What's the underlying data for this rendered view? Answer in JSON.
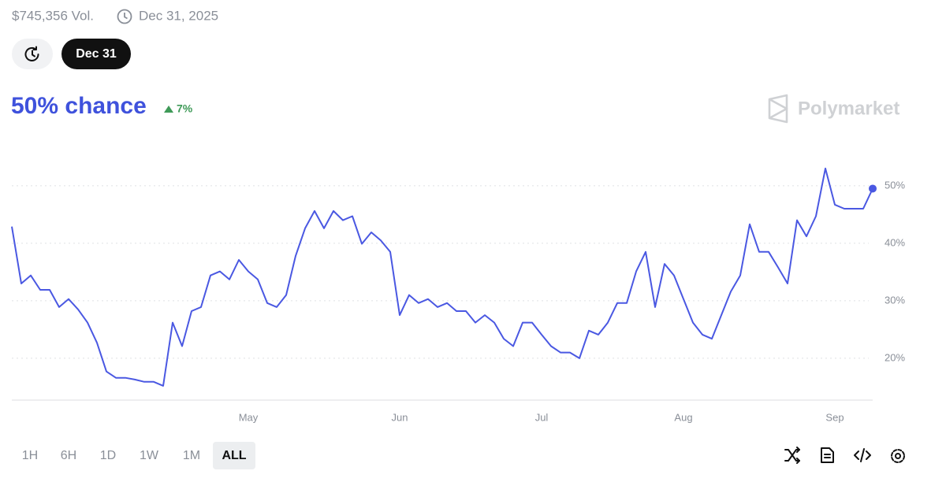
{
  "header": {
    "volume": "$745,356 Vol.",
    "end_date": "Dec 31, 2025",
    "date_button": "Dec 31"
  },
  "probability": {
    "chance": "50% chance",
    "change": "7%"
  },
  "brand": "Polymarket",
  "time_ranges": [
    "1H",
    "6H",
    "1D",
    "1W",
    "1M",
    "ALL"
  ],
  "chart_data": {
    "type": "line",
    "color": "#4a58e2",
    "categories": [
      null,
      null,
      null,
      null,
      null,
      null,
      null,
      null,
      null,
      null,
      null,
      null,
      null,
      null,
      null,
      null,
      null,
      null,
      null,
      null,
      null,
      null,
      null,
      null,
      null,
      "May",
      null,
      null,
      null,
      null,
      null,
      null,
      null,
      null,
      null,
      null,
      null,
      null,
      null,
      null,
      null,
      "Jun",
      null,
      null,
      null,
      null,
      null,
      null,
      null,
      null,
      null,
      null,
      null,
      null,
      null,
      null,
      "Jul",
      null,
      null,
      null,
      null,
      null,
      null,
      null,
      null,
      null,
      null,
      null,
      null,
      null,
      null,
      "Aug",
      null,
      null,
      null,
      null,
      null,
      null,
      null,
      null,
      null,
      null,
      null,
      null,
      null,
      null,
      null,
      "Sep",
      null,
      null,
      null,
      null
    ],
    "values": [
      42.9,
      33.0,
      34.4,
      31.9,
      31.9,
      28.9,
      30.3,
      28.5,
      26.2,
      22.7,
      17.7,
      16.6,
      16.6,
      16.3,
      15.9,
      15.9,
      15.2,
      26.2,
      22.1,
      28.2,
      28.9,
      34.4,
      35.1,
      33.7,
      37.1,
      35.1,
      33.7,
      29.6,
      28.9,
      31.0,
      37.8,
      42.6,
      45.6,
      42.6,
      45.6,
      44.0,
      44.7,
      39.9,
      41.9,
      40.5,
      38.5,
      27.5,
      31.0,
      29.6,
      30.3,
      28.9,
      29.6,
      28.2,
      28.2,
      26.2,
      27.5,
      26.2,
      23.4,
      22.1,
      26.2,
      26.2,
      24.1,
      22.1,
      21.0,
      21.0,
      20.0,
      24.8,
      24.1,
      26.2,
      29.6,
      29.6,
      35.1,
      38.5,
      28.9,
      36.4,
      34.4,
      30.3,
      26.2,
      24.1,
      23.4,
      27.5,
      31.6,
      34.4,
      43.3,
      38.5,
      38.5,
      35.8,
      33.0,
      44.0,
      41.2,
      44.7,
      53.0,
      46.7,
      46.0,
      46.0,
      46.0,
      49.5
    ],
    "ylim": [
      13,
      56
    ],
    "yticks": [
      {
        "value": 20,
        "label": "20%"
      },
      {
        "value": 30,
        "label": "30%"
      },
      {
        "value": 40,
        "label": "40%"
      },
      {
        "value": 50,
        "label": "50%"
      }
    ],
    "grid": true
  }
}
